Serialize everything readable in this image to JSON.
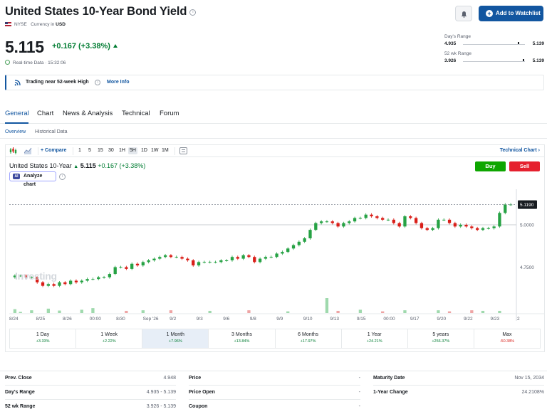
{
  "header": {
    "title": "United States 10-Year Bond Yield",
    "exchange": "NYSE",
    "currency_label": "Currency in",
    "currency": "USD",
    "watchlist_button": "Add to Watchlist"
  },
  "quote": {
    "price": "5.115",
    "change": "+0.167 (+3.38%)",
    "realtime": "Real-time Data · 15:32:06"
  },
  "ranges": {
    "day": {
      "label": "Day's Range",
      "low": "4.935",
      "high": "5.139",
      "position": 0.88
    },
    "week52": {
      "label": "52 wk Range",
      "low": "3.926",
      "high": "5.139",
      "position": 0.97
    }
  },
  "banner": {
    "text": "Trading near 52-week High",
    "link": "More Info"
  },
  "tabs": [
    "General",
    "Chart",
    "News & Analysis",
    "Technical",
    "Forum"
  ],
  "subtabs": [
    "Overview",
    "Historical Data"
  ],
  "toolbar": {
    "compare": "Compare",
    "intervals": [
      "1",
      "5",
      "15",
      "30",
      "1H",
      "5H",
      "1D",
      "1W",
      "1M"
    ],
    "active_interval": "5H",
    "technical": "Technical Chart"
  },
  "chart_header": {
    "name": "United States 10-Year",
    "price": "5.115",
    "change": "+0.167 (+3.38%)",
    "analyze": "Analyze chart",
    "buy": "Buy",
    "sell": "Sell",
    "watermark": "Investing"
  },
  "chart_data": {
    "type": "candlestick",
    "ylim": [
      4.58,
      5.21
    ],
    "yticks": [
      4.75,
      5.0
    ],
    "ytick_labels": [
      "4.7500",
      "5.0000"
    ],
    "last_label": "5.1190",
    "last_value": 5.119,
    "reference_line": 5.0,
    "xtick_labels": [
      "8/24",
      "8/25",
      "8/26",
      "00:00",
      "8/30",
      "Sep '26",
      "9/2",
      "9/3",
      "9/6",
      "9/8",
      "9/9",
      "9/10",
      "9/13",
      "9/15",
      "00:00",
      "9/17",
      "9/20",
      "9/22",
      "9/23",
      "2"
    ],
    "closes": [
      4.7,
      4.7,
      4.69,
      4.69,
      4.66,
      4.64,
      4.65,
      4.64,
      4.66,
      4.65,
      4.67,
      4.66,
      4.67,
      4.68,
      4.68,
      4.69,
      4.69,
      4.71,
      4.75,
      4.75,
      4.74,
      4.77,
      4.76,
      4.78,
      4.79,
      4.8,
      4.81,
      4.82,
      4.81,
      4.81,
      4.8,
      4.79,
      4.76,
      4.78,
      4.78,
      4.78,
      4.78,
      4.79,
      4.79,
      4.81,
      4.8,
      4.82,
      4.81,
      4.78,
      4.8,
      4.81,
      4.81,
      4.83,
      4.84,
      4.86,
      4.88,
      4.9,
      4.92,
      4.97,
      5.01,
      5.02,
      5.02,
      5.01,
      4.99,
      5.01,
      5.02,
      5.04,
      5.04,
      5.06,
      5.05,
      5.04,
      5.03,
      5.03,
      5.01,
      4.99,
      5.05,
      5.04,
      5.01,
      4.98,
      4.97,
      4.98,
      5.03,
      5.03,
      5.01,
      4.99,
      5.0,
      4.99,
      4.98,
      4.97,
      4.98,
      4.98,
      4.99,
      5.07,
      5.12,
      5.12
    ],
    "volumes": [
      14,
      4,
      0,
      10,
      0,
      0,
      16,
      0,
      9,
      0,
      0,
      0,
      12,
      0,
      18,
      0,
      0,
      0,
      0,
      0,
      8,
      0,
      0,
      10,
      0,
      0,
      0,
      0,
      10,
      0,
      0,
      0,
      0,
      0,
      0,
      8,
      0,
      0,
      0,
      0,
      0,
      0,
      10,
      0,
      0,
      0,
      0,
      0,
      0,
      6,
      0,
      0,
      0,
      0,
      0,
      0,
      55,
      0,
      8,
      0,
      0,
      0,
      12,
      0,
      0,
      0,
      6,
      0,
      0,
      0,
      10,
      0,
      0,
      0,
      0,
      0,
      10,
      0,
      6,
      0,
      0,
      0,
      10,
      0,
      8,
      0,
      0,
      8,
      0,
      0
    ]
  },
  "periods": [
    {
      "label": "1 Day",
      "value": "+3.33%",
      "dir": "up"
    },
    {
      "label": "1 Week",
      "value": "+2.22%",
      "dir": "up"
    },
    {
      "label": "1 Month",
      "value": "+7.96%",
      "dir": "up",
      "active": true
    },
    {
      "label": "3 Months",
      "value": "+13.84%",
      "dir": "up"
    },
    {
      "label": "6 Months",
      "value": "+17.97%",
      "dir": "up"
    },
    {
      "label": "1 Year",
      "value": "+24.21%",
      "dir": "up"
    },
    {
      "label": "5 years",
      "value": "+256.37%",
      "dir": "up"
    },
    {
      "label": "Max",
      "value": "-50.38%",
      "dir": "down"
    }
  ],
  "stats": {
    "prev_close": {
      "label": "Prev. Close",
      "value": "4.948"
    },
    "days_range": {
      "label": "Day's Range",
      "value": "4.935 - 5.139"
    },
    "wk52_range": {
      "label": "52 wk Range",
      "value": "3.926 - 5.139"
    },
    "price": {
      "label": "Price",
      "value": "-"
    },
    "price_open": {
      "label": "Price Open",
      "value": "-"
    },
    "coupon": {
      "label": "Coupon",
      "value": "-"
    },
    "maturity": {
      "label": "Maturity Date",
      "value": "Nov 15, 2034"
    },
    "one_year_change": {
      "label": "1-Year Change",
      "value": "24.2108%"
    }
  }
}
